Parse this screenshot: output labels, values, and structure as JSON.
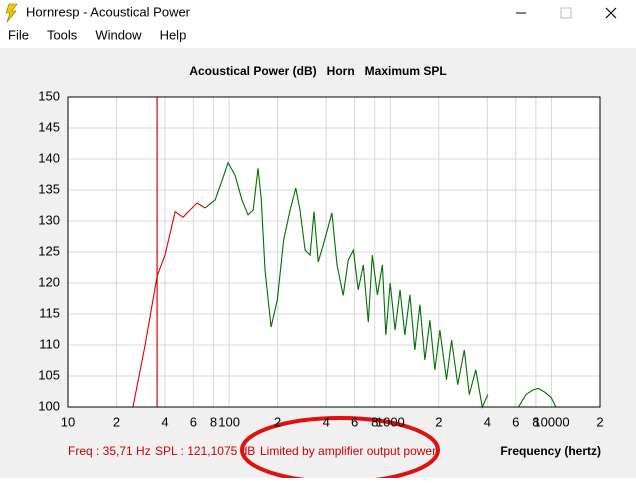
{
  "window": {
    "title": "Hornresp - Acoustical Power"
  },
  "menu": [
    "File",
    "Tools",
    "Window",
    "Help"
  ],
  "chart_data": {
    "type": "line",
    "title": "Acoustical Power (dB)   Horn   Maximum SPL",
    "x_label": "Frequency (hertz)",
    "xlog": true,
    "grid": true,
    "xlim": [
      10,
      20000
    ],
    "ylim": [
      100,
      150
    ],
    "xticks": [
      10,
      {
        "value": 20,
        "label": "2"
      },
      {
        "value": 40,
        "label": "4"
      },
      {
        "value": 60,
        "label": "6"
      },
      {
        "value": 80,
        "label": "8"
      },
      100,
      {
        "value": 200,
        "label": "2"
      },
      {
        "value": 400,
        "label": "4"
      },
      {
        "value": 600,
        "label": "6"
      },
      {
        "value": 800,
        "label": "8"
      },
      1000,
      {
        "value": 2000,
        "label": "2"
      },
      {
        "value": 4000,
        "label": "4"
      },
      {
        "value": 6000,
        "label": "6"
      },
      {
        "value": 8000,
        "label": "8"
      },
      10000,
      {
        "value": 20000,
        "label": "2"
      }
    ],
    "yticks": [
      100,
      105,
      110,
      115,
      120,
      125,
      130,
      135,
      140,
      145,
      150
    ],
    "cursor": {
      "x": 35.71,
      "y": 121.1075,
      "color": "#e00000"
    },
    "series": [
      {
        "color": "#e00000",
        "x": [
          25.3,
          30.1,
          35.71,
          40,
          46.2,
          51.8,
          57.3,
          63.2,
          71
        ],
        "values": [
          100,
          110,
          121.1,
          124.5,
          131.5,
          130.6,
          131.8,
          132.9,
          132.1
        ]
      },
      {
        "color": "#007000",
        "x": [
          71,
          81.8,
          90.5,
          98.4,
          108.7,
          120,
          131,
          141,
          151,
          158,
          167,
          182,
          199,
          218,
          239,
          259,
          275,
          296,
          318,
          336,
          357,
          383,
          410,
          434,
          467,
          510,
          548,
          590,
          632,
          680,
          730,
          773,
          831,
          893,
          938,
          998,
          1070,
          1149,
          1231,
          1323,
          1420,
          1526,
          1638,
          1760,
          1890,
          2030,
          2231,
          2400,
          2620,
          2878,
          3090,
          3390,
          3720,
          4030,
          5000,
          6240,
          6940,
          7630,
          8280,
          9070,
          9970,
          10640
        ],
        "values": [
          132.1,
          133.4,
          136.6,
          139.4,
          137.4,
          133.4,
          131,
          131.8,
          138.5,
          133.7,
          122,
          112.9,
          117.3,
          127,
          131.8,
          135.3,
          131.8,
          125.3,
          124.5,
          131.5,
          123.4,
          126.1,
          128.9,
          131.3,
          122.9,
          118,
          123.7,
          125.3,
          118.9,
          122.9,
          113.7,
          124.5,
          118.1,
          122.9,
          111.6,
          120,
          112.4,
          118.9,
          111.6,
          118.1,
          109.2,
          116.5,
          107.6,
          114,
          106,
          112.4,
          104.4,
          110.8,
          103.6,
          109.2,
          102,
          106,
          100,
          102,
          null,
          100,
          102,
          102.7,
          103,
          102.4,
          101.5,
          100
        ]
      }
    ],
    "status": {
      "freq": "Freq : 35,71 Hz",
      "spl": "SPL : 121,1075 dB",
      "note": "Limited by amplifier output power"
    }
  }
}
